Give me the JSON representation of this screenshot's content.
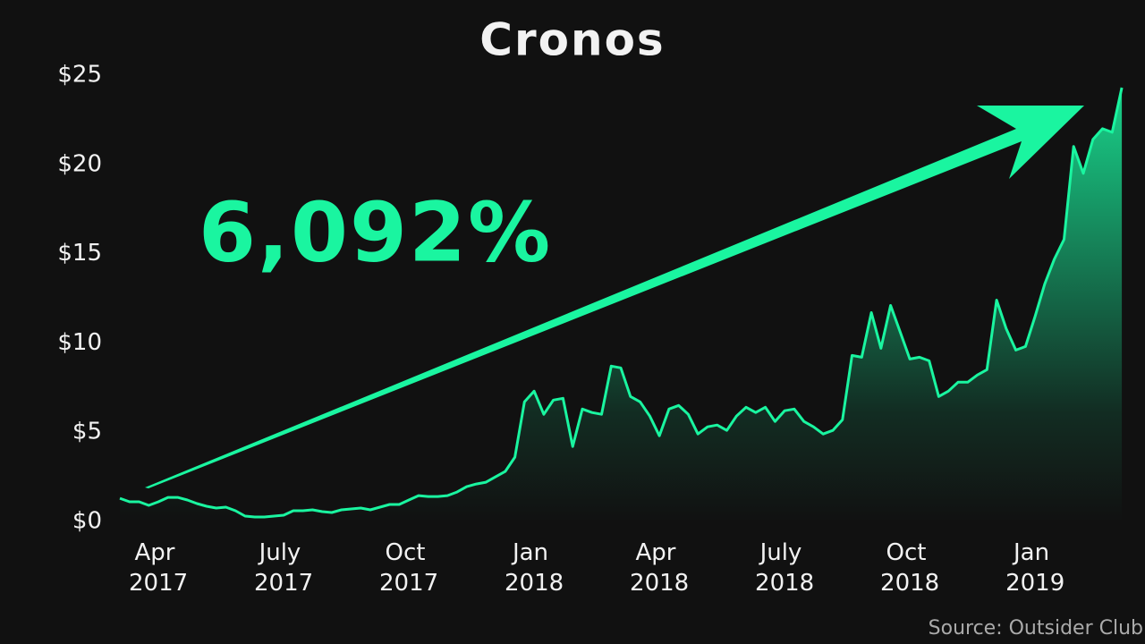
{
  "chart_data": {
    "type": "line",
    "title": "Cronos",
    "annotation": "6,092%",
    "source": "Source: Outsider Club",
    "color": "#1af5a0",
    "categories": [
      null,
      null,
      null,
      null,
      "Apr 2017",
      null,
      null,
      null,
      null,
      null,
      null,
      null,
      null,
      null,
      null,
      null,
      null,
      "July 2017",
      null,
      null,
      null,
      null,
      null,
      null,
      null,
      null,
      null,
      null,
      null,
      null,
      "Oct 2017",
      null,
      null,
      null,
      null,
      null,
      null,
      null,
      null,
      null,
      null,
      null,
      null,
      "Jan 2018",
      null,
      null,
      null,
      null,
      null,
      null,
      null,
      null,
      null,
      null,
      null,
      null,
      "Apr 2018",
      null,
      null,
      null,
      null,
      null,
      null,
      null,
      null,
      null,
      null,
      null,
      null,
      "July 2018",
      null,
      null,
      null,
      null,
      null,
      null,
      null,
      null,
      null,
      null,
      null,
      null,
      "Oct 2018",
      null,
      null,
      null,
      null,
      null,
      null,
      null,
      null,
      null,
      null,
      null,
      null,
      "Jan 2019",
      null,
      null,
      null,
      null,
      null,
      null,
      null,
      null,
      null
    ],
    "values": [
      1.3,
      1.1,
      1.1,
      0.9,
      1.1,
      1.35,
      1.35,
      1.2,
      1.0,
      0.85,
      0.75,
      0.8,
      0.6,
      0.3,
      0.25,
      0.25,
      0.3,
      0.35,
      0.6,
      0.6,
      0.65,
      0.55,
      0.5,
      0.65,
      0.7,
      0.75,
      0.65,
      0.8,
      0.95,
      0.95,
      1.2,
      1.45,
      1.4,
      1.4,
      1.45,
      1.65,
      1.95,
      2.1,
      2.2,
      2.5,
      2.8,
      3.6,
      6.7,
      7.3,
      6.0,
      6.8,
      6.9,
      4.2,
      6.3,
      6.1,
      6.0,
      8.7,
      8.6,
      7.0,
      6.7,
      5.9,
      4.8,
      6.3,
      6.5,
      6.0,
      4.9,
      5.3,
      5.4,
      5.1,
      5.9,
      6.4,
      6.1,
      6.4,
      5.6,
      6.2,
      6.3,
      5.6,
      5.3,
      4.9,
      5.1,
      5.7,
      9.3,
      9.2,
      11.7,
      9.7,
      12.1,
      10.6,
      9.1,
      9.2,
      9.0,
      7.0,
      7.3,
      7.8,
      7.8,
      8.2,
      8.5,
      12.4,
      10.8,
      9.6,
      9.8,
      11.5,
      13.3,
      14.7,
      15.8,
      21.0,
      19.5,
      21.4,
      22.0,
      21.8,
      24.3
    ],
    "ylim": [
      0,
      25
    ],
    "yticks": [
      {
        "value": 0,
        "label": "$0"
      },
      {
        "value": 5,
        "label": "$5"
      },
      {
        "value": 10,
        "label": "$10"
      },
      {
        "value": 15,
        "label": "$15"
      },
      {
        "value": 20,
        "label": "$20"
      },
      {
        "value": 25,
        "label": "$25"
      }
    ]
  }
}
